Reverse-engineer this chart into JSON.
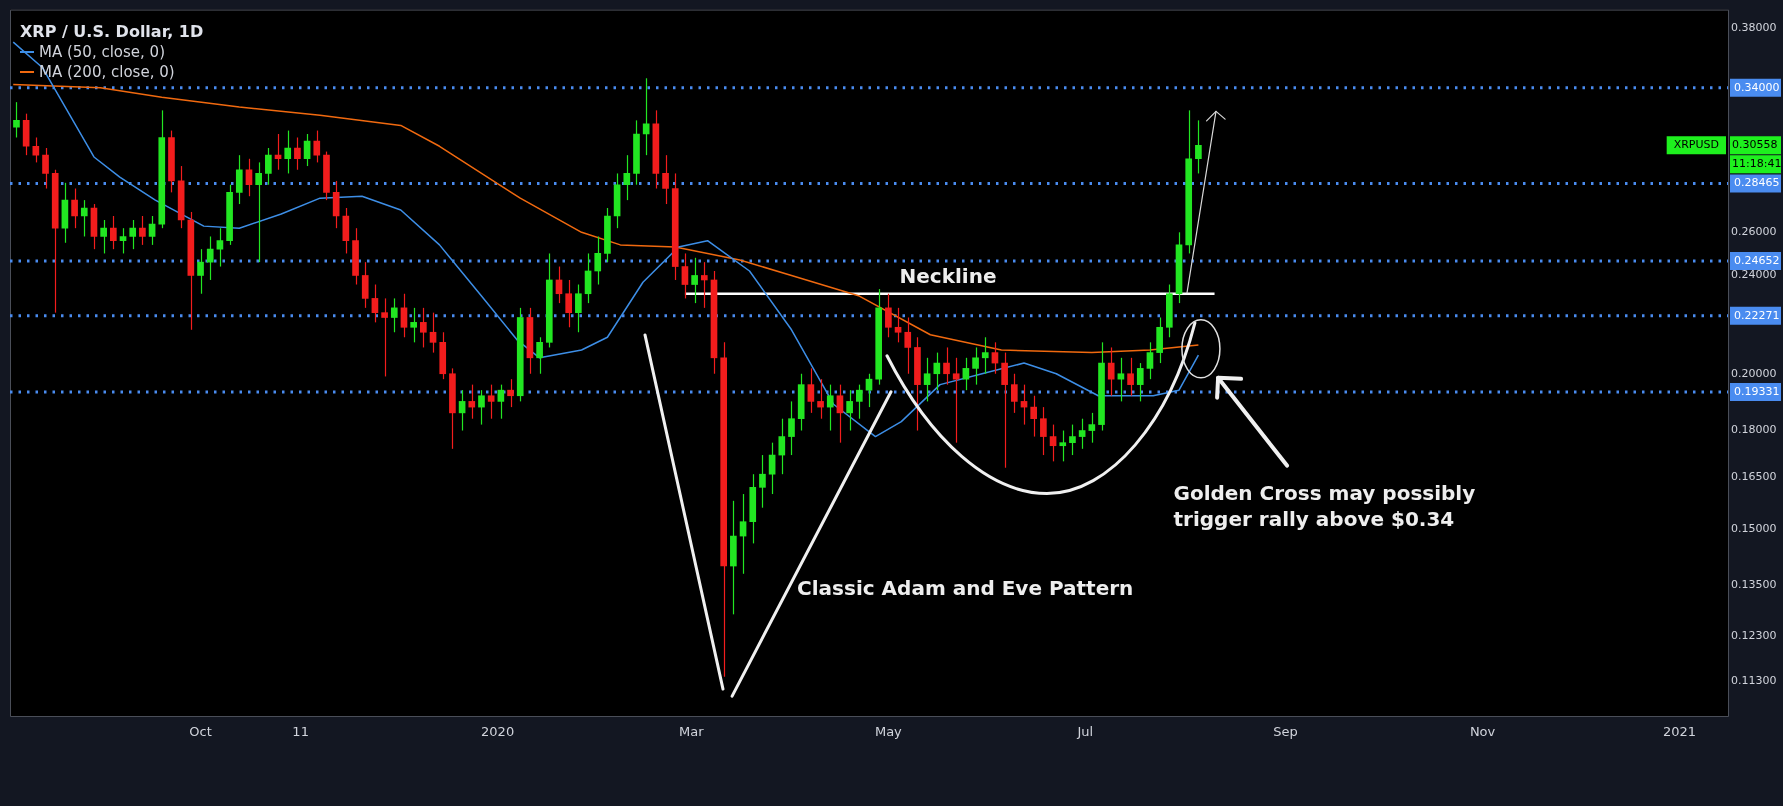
{
  "chart_data": {
    "type": "candlestick",
    "title": "XRP / U.S. Dollar, 1D",
    "xlim": [
      "2019-08-03",
      "2021-01-16"
    ],
    "xticks": [
      {
        "value": "2019-10-01",
        "label": "Oct"
      },
      {
        "value": "2019-11-01",
        "label": "11"
      },
      {
        "value": "2020-01-01",
        "label": "2020"
      },
      {
        "value": "2020-03-01",
        "label": "Mar"
      },
      {
        "value": "2020-05-01",
        "label": "May"
      },
      {
        "value": "2020-07-01",
        "label": "Jul"
      },
      {
        "value": "2020-09-01",
        "label": "Sep"
      },
      {
        "value": "2020-11-01",
        "label": "Nov"
      },
      {
        "value": "2021-01-01",
        "label": "2021"
      }
    ],
    "ylim": [
      0.106,
      0.393
    ],
    "yticks": [
      {
        "value": 0.113,
        "label": "0.11300"
      },
      {
        "value": 0.123,
        "label": "0.12300"
      },
      {
        "value": 0.135,
        "label": "0.13500"
      },
      {
        "value": 0.15,
        "label": "0.15000"
      },
      {
        "value": 0.165,
        "label": "0.16500"
      },
      {
        "value": 0.18,
        "label": "0.18000"
      },
      {
        "value": 0.2,
        "label": "0.20000"
      },
      {
        "value": 0.24,
        "label": "0.24000"
      },
      {
        "value": 0.26,
        "label": "0.26000"
      },
      {
        "value": 0.38,
        "label": "0.38000"
      }
    ],
    "log": "y",
    "legend": "top left",
    "series": [
      {
        "x": [
          "2019-08-05",
          "2019-08-08",
          "2019-08-11",
          "2019-08-14",
          "2019-08-17",
          "2019-08-20",
          "2019-08-23",
          "2019-08-26",
          "2019-08-29",
          "2019-09-01",
          "2019-09-04",
          "2019-09-07",
          "2019-09-10",
          "2019-09-13",
          "2019-09-16",
          "2019-09-19",
          "2019-09-22",
          "2019-09-25",
          "2019-09-28",
          "2019-10-01",
          "2019-10-04",
          "2019-10-07",
          "2019-10-10",
          "2019-10-13",
          "2019-10-16",
          "2019-10-19",
          "2019-10-22",
          "2019-10-25",
          "2019-10-28",
          "2019-10-31",
          "2019-11-03",
          "2019-11-06",
          "2019-11-09",
          "2019-11-12",
          "2019-11-15",
          "2019-11-18",
          "2019-11-21",
          "2019-11-24",
          "2019-11-27",
          "2019-11-30",
          "2019-12-03",
          "2019-12-06",
          "2019-12-09",
          "2019-12-12",
          "2019-12-15",
          "2019-12-18",
          "2019-12-21",
          "2019-12-24",
          "2019-12-27",
          "2019-12-30",
          "2020-01-02",
          "2020-01-05",
          "2020-01-08",
          "2020-01-11",
          "2020-01-14",
          "2020-01-17",
          "2020-01-20",
          "2020-01-23",
          "2020-01-26",
          "2020-01-29",
          "2020-02-01",
          "2020-02-04",
          "2020-02-07",
          "2020-02-10",
          "2020-02-13",
          "2020-02-16",
          "2020-02-19",
          "2020-02-22",
          "2020-02-25",
          "2020-02-28",
          "2020-03-02",
          "2020-03-05",
          "2020-03-08",
          "2020-03-11",
          "2020-03-14",
          "2020-03-17",
          "2020-03-20",
          "2020-03-23",
          "2020-03-26",
          "2020-03-29",
          "2020-04-01",
          "2020-04-04",
          "2020-04-07",
          "2020-04-10",
          "2020-04-13",
          "2020-04-16",
          "2020-04-19",
          "2020-04-22",
          "2020-04-25",
          "2020-04-28",
          "2020-05-01",
          "2020-05-04",
          "2020-05-07",
          "2020-05-10",
          "2020-05-13",
          "2020-05-16",
          "2020-05-19",
          "2020-05-22",
          "2020-05-25",
          "2020-05-28",
          "2020-05-31",
          "2020-06-03",
          "2020-06-06",
          "2020-06-09",
          "2020-06-12",
          "2020-06-15",
          "2020-06-18",
          "2020-06-21",
          "2020-06-24",
          "2020-06-27",
          "2020-06-30",
          "2020-07-03",
          "2020-07-06",
          "2020-07-09",
          "2020-07-12",
          "2020-07-15",
          "2020-07-18",
          "2020-07-21",
          "2020-07-24",
          "2020-07-27",
          "2020-07-30",
          "2020-08-02",
          "2020-08-05"
        ],
        "ohlc": [
          [
            0.316,
            0.331,
            0.31,
            0.32
          ],
          [
            0.32,
            0.324,
            0.3,
            0.305
          ],
          [
            0.305,
            0.31,
            0.296,
            0.3
          ],
          [
            0.3,
            0.304,
            0.282,
            0.29
          ],
          [
            0.29,
            0.292,
            0.224,
            0.262
          ],
          [
            0.262,
            0.285,
            0.255,
            0.276
          ],
          [
            0.276,
            0.282,
            0.262,
            0.268
          ],
          [
            0.268,
            0.276,
            0.258,
            0.272
          ],
          [
            0.272,
            0.274,
            0.252,
            0.258
          ],
          [
            0.258,
            0.266,
            0.25,
            0.262
          ],
          [
            0.262,
            0.268,
            0.252,
            0.256
          ],
          [
            0.256,
            0.262,
            0.25,
            0.258
          ],
          [
            0.258,
            0.266,
            0.252,
            0.262
          ],
          [
            0.262,
            0.268,
            0.254,
            0.258
          ],
          [
            0.258,
            0.268,
            0.254,
            0.264
          ],
          [
            0.264,
            0.326,
            0.262,
            0.31
          ],
          [
            0.31,
            0.314,
            0.28,
            0.286
          ],
          [
            0.286,
            0.294,
            0.262,
            0.266
          ],
          [
            0.266,
            0.27,
            0.217,
            0.24
          ],
          [
            0.24,
            0.252,
            0.232,
            0.246
          ],
          [
            0.246,
            0.258,
            0.238,
            0.252
          ],
          [
            0.252,
            0.262,
            0.244,
            0.256
          ],
          [
            0.256,
            0.284,
            0.254,
            0.28
          ],
          [
            0.28,
            0.3,
            0.274,
            0.292
          ],
          [
            0.292,
            0.298,
            0.278,
            0.284
          ],
          [
            0.284,
            0.296,
            0.246,
            0.29
          ],
          [
            0.29,
            0.304,
            0.284,
            0.3
          ],
          [
            0.3,
            0.312,
            0.292,
            0.298
          ],
          [
            0.298,
            0.314,
            0.29,
            0.304
          ],
          [
            0.304,
            0.31,
            0.292,
            0.298
          ],
          [
            0.298,
            0.312,
            0.294,
            0.308
          ],
          [
            0.308,
            0.314,
            0.296,
            0.3
          ],
          [
            0.3,
            0.302,
            0.276,
            0.28
          ],
          [
            0.28,
            0.286,
            0.262,
            0.268
          ],
          [
            0.268,
            0.272,
            0.25,
            0.256
          ],
          [
            0.256,
            0.262,
            0.236,
            0.24
          ],
          [
            0.24,
            0.246,
            0.226,
            0.23
          ],
          [
            0.23,
            0.236,
            0.22,
            0.224
          ],
          [
            0.224,
            0.23,
            0.199,
            0.222
          ],
          [
            0.222,
            0.23,
            0.216,
            0.226
          ],
          [
            0.226,
            0.232,
            0.214,
            0.218
          ],
          [
            0.218,
            0.226,
            0.212,
            0.22
          ],
          [
            0.22,
            0.226,
            0.21,
            0.216
          ],
          [
            0.216,
            0.224,
            0.208,
            0.212
          ],
          [
            0.212,
            0.216,
            0.198,
            0.2
          ],
          [
            0.2,
            0.202,
            0.174,
            0.186
          ],
          [
            0.186,
            0.194,
            0.18,
            0.19
          ],
          [
            0.19,
            0.196,
            0.184,
            0.188
          ],
          [
            0.188,
            0.194,
            0.182,
            0.192
          ],
          [
            0.192,
            0.196,
            0.184,
            0.19
          ],
          [
            0.19,
            0.196,
            0.184,
            0.194
          ],
          [
            0.194,
            0.198,
            0.188,
            0.192
          ],
          [
            0.192,
            0.226,
            0.19,
            0.222
          ],
          [
            0.222,
            0.226,
            0.2,
            0.206
          ],
          [
            0.206,
            0.214,
            0.2,
            0.212
          ],
          [
            0.212,
            0.25,
            0.21,
            0.238
          ],
          [
            0.238,
            0.244,
            0.228,
            0.232
          ],
          [
            0.232,
            0.238,
            0.218,
            0.224
          ],
          [
            0.224,
            0.236,
            0.216,
            0.232
          ],
          [
            0.232,
            0.25,
            0.228,
            0.242
          ],
          [
            0.242,
            0.258,
            0.236,
            0.25
          ],
          [
            0.25,
            0.272,
            0.246,
            0.268
          ],
          [
            0.268,
            0.29,
            0.262,
            0.284
          ],
          [
            0.284,
            0.3,
            0.276,
            0.29
          ],
          [
            0.29,
            0.32,
            0.284,
            0.312
          ],
          [
            0.312,
            0.346,
            0.3,
            0.318
          ],
          [
            0.318,
            0.326,
            0.282,
            0.29
          ],
          [
            0.29,
            0.3,
            0.274,
            0.282
          ],
          [
            0.282,
            0.29,
            0.238,
            0.244
          ],
          [
            0.244,
            0.25,
            0.23,
            0.236
          ],
          [
            0.236,
            0.248,
            0.228,
            0.24
          ],
          [
            0.24,
            0.246,
            0.226,
            0.238
          ],
          [
            0.238,
            0.242,
            0.2,
            0.206
          ],
          [
            0.206,
            0.212,
            0.114,
            0.14
          ],
          [
            0.14,
            0.158,
            0.128,
            0.148
          ],
          [
            0.148,
            0.16,
            0.138,
            0.152
          ],
          [
            0.152,
            0.166,
            0.146,
            0.162
          ],
          [
            0.162,
            0.172,
            0.156,
            0.166
          ],
          [
            0.166,
            0.176,
            0.16,
            0.172
          ],
          [
            0.172,
            0.184,
            0.166,
            0.178
          ],
          [
            0.178,
            0.19,
            0.172,
            0.184
          ],
          [
            0.184,
            0.2,
            0.18,
            0.196
          ],
          [
            0.196,
            0.202,
            0.186,
            0.19
          ],
          [
            0.19,
            0.198,
            0.184,
            0.188
          ],
          [
            0.188,
            0.196,
            0.18,
            0.192
          ],
          [
            0.192,
            0.196,
            0.176,
            0.186
          ],
          [
            0.186,
            0.194,
            0.18,
            0.19
          ],
          [
            0.19,
            0.196,
            0.184,
            0.194
          ],
          [
            0.194,
            0.2,
            0.188,
            0.198
          ],
          [
            0.198,
            0.234,
            0.196,
            0.226
          ],
          [
            0.226,
            0.232,
            0.214,
            0.218
          ],
          [
            0.218,
            0.226,
            0.212,
            0.216
          ],
          [
            0.216,
            0.222,
            0.2,
            0.21
          ],
          [
            0.21,
            0.214,
            0.18,
            0.196
          ],
          [
            0.196,
            0.206,
            0.19,
            0.2
          ],
          [
            0.2,
            0.208,
            0.194,
            0.204
          ],
          [
            0.204,
            0.21,
            0.196,
            0.2
          ],
          [
            0.2,
            0.206,
            0.176,
            0.198
          ],
          [
            0.198,
            0.206,
            0.194,
            0.202
          ],
          [
            0.202,
            0.21,
            0.196,
            0.206
          ],
          [
            0.206,
            0.214,
            0.2,
            0.208
          ],
          [
            0.208,
            0.212,
            0.2,
            0.204
          ],
          [
            0.204,
            0.208,
            0.168,
            0.196
          ],
          [
            0.196,
            0.2,
            0.186,
            0.19
          ],
          [
            0.19,
            0.196,
            0.182,
            0.188
          ],
          [
            0.188,
            0.192,
            0.178,
            0.184
          ],
          [
            0.184,
            0.188,
            0.172,
            0.178
          ],
          [
            0.178,
            0.182,
            0.17,
            0.175
          ],
          [
            0.175,
            0.18,
            0.17,
            0.176
          ],
          [
            0.176,
            0.182,
            0.172,
            0.178
          ],
          [
            0.178,
            0.184,
            0.174,
            0.18
          ],
          [
            0.18,
            0.186,
            0.176,
            0.182
          ],
          [
            0.182,
            0.212,
            0.18,
            0.204
          ],
          [
            0.204,
            0.21,
            0.192,
            0.198
          ],
          [
            0.198,
            0.206,
            0.19,
            0.2
          ],
          [
            0.2,
            0.206,
            0.192,
            0.196
          ],
          [
            0.196,
            0.204,
            0.19,
            0.202
          ],
          [
            0.202,
            0.212,
            0.198,
            0.208
          ],
          [
            0.208,
            0.222,
            0.204,
            0.218
          ],
          [
            0.218,
            0.236,
            0.214,
            0.232
          ],
          [
            0.232,
            0.26,
            0.228,
            0.254
          ],
          [
            0.254,
            0.326,
            0.25,
            0.298
          ],
          [
            0.298,
            0.32,
            0.29,
            0.30558
          ]
        ]
      },
      {
        "type": "line",
        "name": "MA (50, close, 0)",
        "color": "#3d8ee6",
        "x": [
          "2019-08-04",
          "2019-08-13",
          "2019-08-29",
          "2019-09-06",
          "2019-09-17",
          "2019-10-02",
          "2019-10-13",
          "2019-10-26",
          "2019-11-07",
          "2019-11-20",
          "2019-12-02",
          "2019-12-14",
          "2019-12-27",
          "2020-01-07",
          "2020-01-14",
          "2020-01-27",
          "2020-02-04",
          "2020-02-15",
          "2020-02-26",
          "2020-03-06",
          "2020-03-19",
          "2020-04-01",
          "2020-04-14",
          "2020-04-27",
          "2020-05-05",
          "2020-05-17",
          "2020-05-30",
          "2020-06-12",
          "2020-06-22",
          "2020-07-05",
          "2020-07-22",
          "2020-07-30",
          "2020-08-05"
        ],
        "values": [
          0.37,
          0.353,
          0.299,
          0.288,
          0.276,
          0.263,
          0.262,
          0.269,
          0.277,
          0.278,
          0.271,
          0.254,
          0.231,
          0.213,
          0.206,
          0.209,
          0.214,
          0.237,
          0.253,
          0.256,
          0.242,
          0.217,
          0.189,
          0.178,
          0.183,
          0.196,
          0.2,
          0.204,
          0.2,
          0.192,
          0.192,
          0.194,
          0.207
        ]
      },
      {
        "type": "line",
        "name": "MA (200, close, 0)",
        "color": "#f0690f",
        "x": [
          "2019-08-04",
          "2019-08-31",
          "2019-09-19",
          "2019-10-13",
          "2019-11-07",
          "2019-12-02",
          "2019-12-14",
          "2020-01-08",
          "2020-01-27",
          "2020-02-08",
          "2020-02-25",
          "2020-03-16",
          "2020-04-01",
          "2020-04-22",
          "2020-05-14",
          "2020-06-05",
          "2020-07-03",
          "2020-07-21",
          "2020-08-05"
        ],
        "values": [
          0.342,
          0.34,
          0.334,
          0.328,
          0.323,
          0.317,
          0.305,
          0.277,
          0.26,
          0.254,
          0.253,
          0.247,
          0.24,
          0.231,
          0.215,
          0.209,
          0.208,
          0.209,
          0.211
        ]
      },
      {
        "type": "line",
        "color": "#ffffff",
        "x": [
          "2020-02-28",
          "2020-08-10"
        ],
        "values": [
          0.232,
          0.232
        ]
      }
    ],
    "ref_lines": [
      {
        "axis": "y",
        "value": 0.34,
        "label": "0.34000",
        "color": "#4a8cf0",
        "line_style": "dotted"
      },
      {
        "axis": "y",
        "value": 0.28465,
        "label": "0.28465",
        "color": "#4a8cf0",
        "line_style": "dotted"
      },
      {
        "axis": "y",
        "value": 0.24652,
        "label": "0.24652",
        "color": "#4a8cf0",
        "line_style": "dotted"
      },
      {
        "axis": "y",
        "value": 0.22271,
        "label": "0.22271",
        "color": "#4a8cf0",
        "line_style": "dotted"
      },
      {
        "axis": "y",
        "value": 0.19331,
        "label": "0.19331",
        "color": "#4a8cf0",
        "line_style": "dotted"
      }
    ],
    "annotations": [
      "Neckline",
      "Classic Adam and Eve Pattern",
      "Golden Cross may possibly trigger rally above $0.34",
      "XRPUSD",
      "0.30558",
      "11:18:41"
    ]
  }
}
